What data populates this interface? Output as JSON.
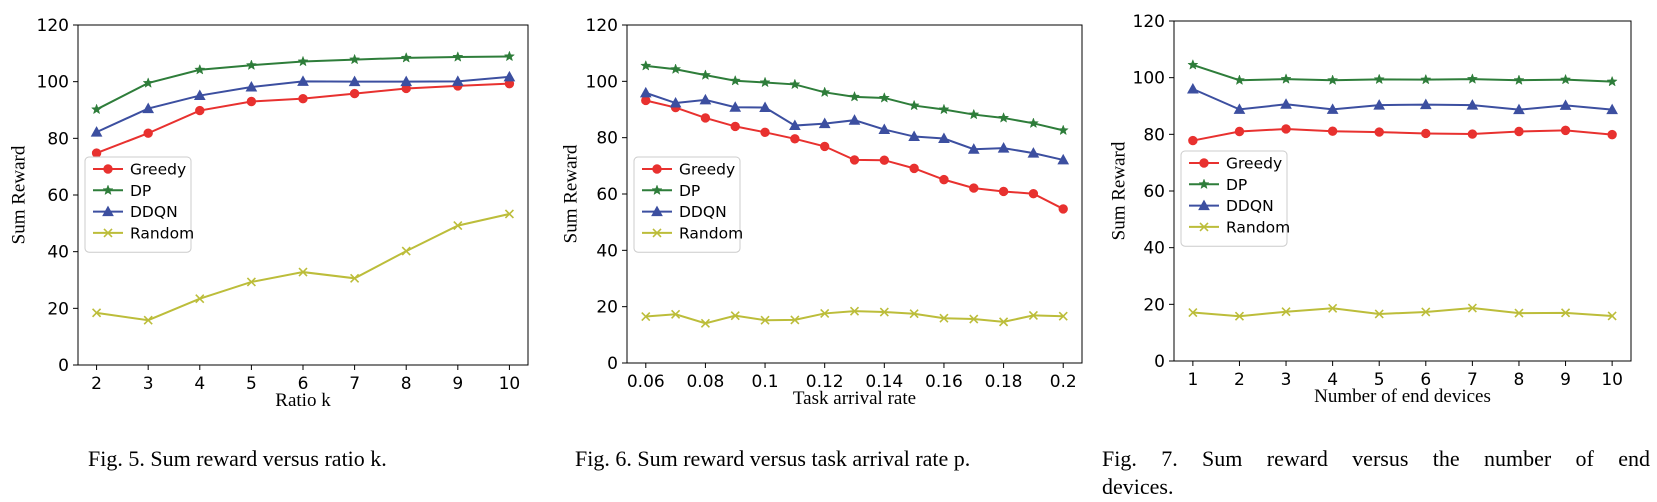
{
  "chart_data": [
    {
      "type": "line",
      "caption": "Fig. 5.  Sum reward versus ratio k.",
      "xlabel": "Ratio k",
      "ylabel": "Sum Reward",
      "x": [
        2,
        3,
        4,
        5,
        6,
        7,
        8,
        9,
        10
      ],
      "x_tick_labels": [
        "2",
        "3",
        "4",
        "5",
        "6",
        "7",
        "8",
        "9",
        "10"
      ],
      "ylim": [
        0,
        120
      ],
      "y_ticks": [
        0,
        20,
        40,
        60,
        80,
        100,
        120
      ],
      "legend_position": "center-left",
      "series": [
        {
          "name": "Greedy",
          "color": "#e8312f",
          "marker": "circle",
          "values": [
            74.8,
            81.8,
            89.8,
            93.0,
            94.0,
            95.8,
            97.6,
            98.5,
            99.3
          ]
        },
        {
          "name": "DP",
          "color": "#2e7d3a",
          "marker": "star",
          "values": [
            90.2,
            99.5,
            104.2,
            105.8,
            107.1,
            107.8,
            108.4,
            108.7,
            108.9
          ]
        },
        {
          "name": "DDQN",
          "color": "#3c4fa0",
          "marker": "triangle",
          "values": [
            82.2,
            90.5,
            95.1,
            98.1,
            100.1,
            100.0,
            100.0,
            100.1,
            101.7
          ]
        },
        {
          "name": "Random",
          "color": "#bcbd3a",
          "marker": "x",
          "values": [
            18.4,
            15.8,
            23.4,
            29.3,
            32.8,
            30.6,
            40.2,
            49.2,
            53.3
          ]
        }
      ]
    },
    {
      "type": "line",
      "caption": "Fig. 6.  Sum reward versus task arrival rate p.",
      "xlabel": "Task arrival rate",
      "ylabel": "Sum Reward",
      "x": [
        0.06,
        0.07,
        0.08,
        0.09,
        0.1,
        0.11,
        0.12,
        0.13,
        0.14,
        0.15,
        0.16,
        0.17,
        0.18,
        0.19,
        0.2
      ],
      "x_ticks": [
        0.06,
        0.08,
        0.1,
        0.12,
        0.14,
        0.16,
        0.18,
        0.2
      ],
      "x_tick_labels": [
        "0.06",
        "0.08",
        "0.1",
        "0.12",
        "0.14",
        "0.16",
        "0.18",
        "0.2"
      ],
      "ylim": [
        0,
        120
      ],
      "y_ticks": [
        0,
        20,
        40,
        60,
        80,
        100,
        120
      ],
      "legend_position": "center-left",
      "series": [
        {
          "name": "Greedy",
          "color": "#e8312f",
          "marker": "circle",
          "values": [
            93.2,
            90.7,
            87.0,
            84.0,
            81.9,
            79.6,
            76.9,
            72.1,
            72.0,
            69.1,
            65.1,
            62.1,
            60.9,
            60.1,
            54.7
          ]
        },
        {
          "name": "DP",
          "color": "#2e7d3a",
          "marker": "star",
          "values": [
            105.5,
            104.3,
            102.2,
            100.2,
            99.6,
            98.9,
            96.1,
            94.5,
            94.1,
            91.4,
            90.0,
            88.2,
            87.0,
            85.1,
            82.6
          ]
        },
        {
          "name": "DDQN",
          "color": "#3c4fa0",
          "marker": "triangle",
          "values": [
            95.9,
            92.3,
            93.4,
            90.8,
            90.7,
            84.3,
            85.0,
            86.2,
            82.9,
            80.4,
            79.7,
            75.9,
            76.3,
            74.5,
            72.1
          ]
        },
        {
          "name": "Random",
          "color": "#bcbd3a",
          "marker": "x",
          "values": [
            16.5,
            17.3,
            14.1,
            16.8,
            15.2,
            15.3,
            17.6,
            18.4,
            18.1,
            17.5,
            15.9,
            15.6,
            14.6,
            16.9,
            16.6
          ]
        }
      ]
    },
    {
      "type": "line",
      "caption_lines": [
        "Fig. 7.  Sum reward versus the number of end",
        "devices."
      ],
      "xlabel": "Number of end devices",
      "ylabel": "Sum Reward",
      "x": [
        1,
        2,
        3,
        4,
        5,
        6,
        7,
        8,
        9,
        10
      ],
      "x_tick_labels": [
        "1",
        "2",
        "3",
        "4",
        "5",
        "6",
        "7",
        "8",
        "9",
        "10"
      ],
      "ylim": [
        0,
        120
      ],
      "y_ticks": [
        0,
        20,
        40,
        60,
        80,
        100,
        120
      ],
      "legend_position": "center-left",
      "series": [
        {
          "name": "Greedy",
          "color": "#e8312f",
          "marker": "circle",
          "values": [
            77.8,
            81.0,
            81.9,
            81.1,
            80.8,
            80.3,
            80.1,
            81.0,
            81.4,
            79.9
          ]
        },
        {
          "name": "DP",
          "color": "#2e7d3a",
          "marker": "star",
          "values": [
            104.5,
            99.1,
            99.5,
            99.1,
            99.4,
            99.3,
            99.5,
            99.1,
            99.3,
            98.6
          ]
        },
        {
          "name": "DDQN",
          "color": "#3c4fa0",
          "marker": "triangle",
          "values": [
            96.0,
            88.8,
            90.6,
            88.8,
            90.3,
            90.5,
            90.3,
            88.7,
            90.2,
            88.7
          ]
        },
        {
          "name": "Random",
          "color": "#bcbd3a",
          "marker": "x",
          "values": [
            17.1,
            15.8,
            17.4,
            18.6,
            16.6,
            17.3,
            18.7,
            16.9,
            17.0,
            15.9
          ]
        }
      ]
    }
  ]
}
